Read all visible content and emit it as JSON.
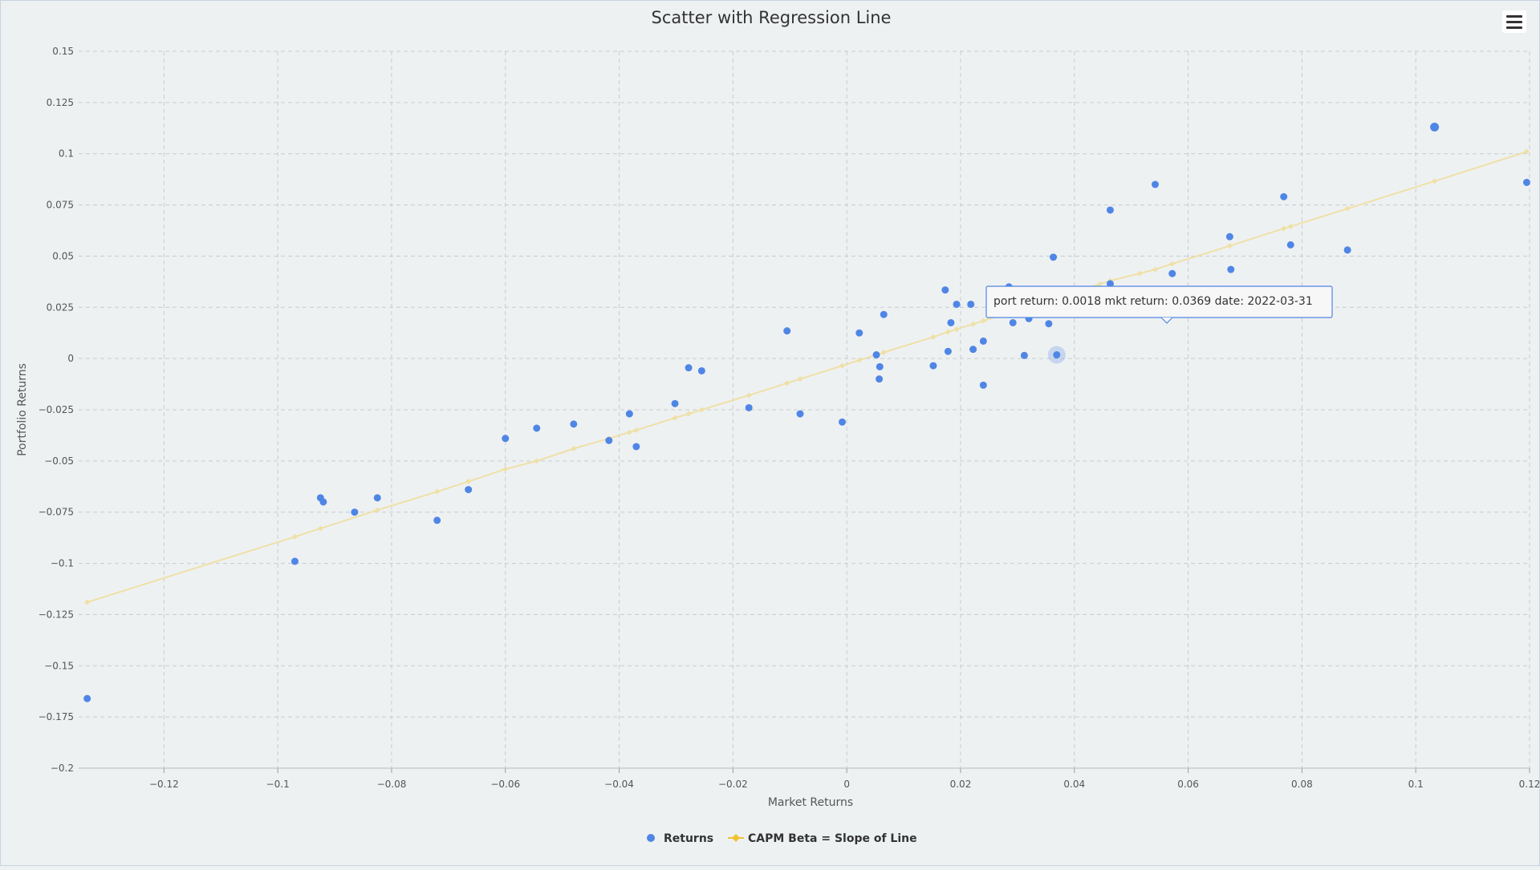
{
  "chart_data": {
    "type": "scatter",
    "title": "Scatter with Regression Line",
    "xlabel": "Market Returns",
    "ylabel": "Portfolio Returns",
    "xlim": [
      -0.135,
      0.12
    ],
    "ylim": [
      -0.2,
      0.15
    ],
    "xticks": [
      -0.12,
      -0.1,
      -0.08,
      -0.06,
      -0.04,
      -0.02,
      0,
      0.02,
      0.04,
      0.06,
      0.08,
      0.1,
      0.12
    ],
    "yticks": [
      -0.2,
      -0.175,
      -0.15,
      -0.125,
      -0.1,
      -0.075,
      -0.05,
      -0.025,
      0,
      0.025,
      0.05,
      0.075,
      0.1,
      0.125,
      0.15
    ],
    "grid": true,
    "legend_position": "bottom-center",
    "colors": {
      "returns": "#4f86e6",
      "capm": "#f2c232",
      "capm_line": "#efe0a6",
      "grid": "#c8cccf"
    },
    "series": [
      {
        "name": "Returns",
        "type": "scatter",
        "points": [
          [
            -0.1335,
            -0.166
          ],
          [
            -0.097,
            -0.099
          ],
          [
            -0.0925,
            -0.068
          ],
          [
            -0.092,
            -0.07
          ],
          [
            -0.0865,
            -0.075
          ],
          [
            -0.0825,
            -0.068
          ],
          [
            -0.072,
            -0.079
          ],
          [
            -0.0665,
            -0.064
          ],
          [
            -0.06,
            -0.039
          ],
          [
            -0.0545,
            -0.034
          ],
          [
            -0.048,
            -0.032
          ],
          [
            -0.0418,
            -0.04
          ],
          [
            -0.0382,
            -0.027
          ],
          [
            -0.037,
            -0.043
          ],
          [
            -0.0302,
            -0.022
          ],
          [
            -0.0278,
            -0.0045
          ],
          [
            -0.0255,
            -0.006
          ],
          [
            -0.0172,
            -0.024
          ],
          [
            -0.0105,
            0.0135
          ],
          [
            -0.0082,
            -0.027
          ],
          [
            -0.0008,
            -0.031
          ],
          [
            0.0022,
            0.0125
          ],
          [
            0.0052,
            0.0018
          ],
          [
            0.0057,
            -0.01
          ],
          [
            0.0058,
            -0.004
          ],
          [
            0.0065,
            0.0215
          ],
          [
            0.0152,
            -0.0035
          ],
          [
            0.0173,
            0.0335
          ],
          [
            0.0178,
            0.0035
          ],
          [
            0.0183,
            0.0175
          ],
          [
            0.0193,
            0.0265
          ],
          [
            0.0218,
            0.0265
          ],
          [
            0.0222,
            0.0045
          ],
          [
            0.024,
            0.0085
          ],
          [
            0.024,
            -0.013
          ],
          [
            0.0285,
            0.035
          ],
          [
            0.0292,
            0.0175
          ],
          [
            0.0312,
            0.0015
          ],
          [
            0.032,
            0.0195
          ],
          [
            0.0355,
            0.017
          ],
          [
            0.0363,
            0.0495
          ],
          [
            0.0369,
            0.0018
          ],
          [
            0.0445,
            0.0285
          ],
          [
            0.0463,
            0.0725
          ],
          [
            0.0463,
            0.0365
          ],
          [
            0.0542,
            0.085
          ],
          [
            0.0572,
            0.0415
          ],
          [
            0.0673,
            0.0595
          ],
          [
            0.0675,
            0.0435
          ],
          [
            0.0768,
            0.079
          ],
          [
            0.078,
            0.0555
          ],
          [
            0.088,
            0.053
          ],
          [
            0.1033,
            0.113
          ],
          [
            0.1195,
            0.086
          ]
        ]
      },
      {
        "name": "CAPM Beta = Slope of Line",
        "type": "line",
        "points": [
          [
            -0.1335,
            -0.119
          ],
          [
            -0.097,
            -0.087
          ],
          [
            -0.0925,
            -0.083
          ],
          [
            -0.0825,
            -0.074
          ],
          [
            -0.072,
            -0.065
          ],
          [
            -0.0665,
            -0.06
          ],
          [
            -0.06,
            -0.054
          ],
          [
            -0.0545,
            -0.05
          ],
          [
            -0.048,
            -0.044
          ],
          [
            -0.0418,
            -0.039
          ],
          [
            -0.0382,
            -0.036
          ],
          [
            -0.037,
            -0.035
          ],
          [
            -0.0302,
            -0.029
          ],
          [
            -0.0278,
            -0.027
          ],
          [
            -0.0255,
            -0.025
          ],
          [
            -0.0172,
            -0.018
          ],
          [
            -0.0105,
            -0.012
          ],
          [
            -0.0082,
            -0.01
          ],
          [
            -0.0008,
            -0.0035
          ],
          [
            0.0022,
            -0.0008
          ],
          [
            0.0052,
            0.0018
          ],
          [
            0.0065,
            0.003
          ],
          [
            0.0152,
            0.0105
          ],
          [
            0.0178,
            0.013
          ],
          [
            0.0193,
            0.0143
          ],
          [
            0.0222,
            0.0168
          ],
          [
            0.024,
            0.0184
          ],
          [
            0.0285,
            0.0223
          ],
          [
            0.0312,
            0.0247
          ],
          [
            0.0355,
            0.0285
          ],
          [
            0.0369,
            0.0297
          ],
          [
            0.0445,
            0.0364
          ],
          [
            0.0463,
            0.038
          ],
          [
            0.0515,
            0.0415
          ],
          [
            0.0542,
            0.0435
          ],
          [
            0.0572,
            0.0462
          ],
          [
            0.0673,
            0.055
          ],
          [
            0.0768,
            0.0635
          ],
          [
            0.078,
            0.0645
          ],
          [
            0.088,
            0.0732
          ],
          [
            0.1033,
            0.0866
          ],
          [
            0.1195,
            0.101
          ]
        ]
      }
    ],
    "highlight_index": 41,
    "tooltip": {
      "text": "port return: 0.0018 mkt return: 0.0369 date: 2022-03-31"
    }
  }
}
